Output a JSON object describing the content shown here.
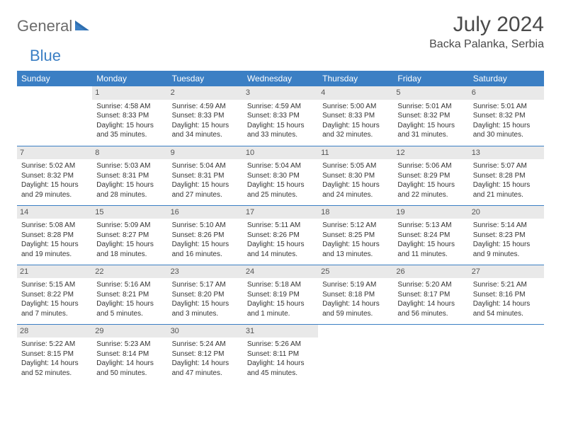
{
  "logo": {
    "word1": "General",
    "word2": "Blue"
  },
  "header": {
    "title": "July 2024",
    "location": "Backa Palanka, Serbia"
  },
  "colors": {
    "header_bg": "#3b7fc4",
    "header_text": "#ffffff",
    "daynum_bg": "#e9e9e9",
    "daynum_text": "#555555",
    "body_text": "#333333",
    "rule": "#3b7fc4",
    "logo_gray": "#6b6b6b",
    "logo_blue": "#3b7fc4"
  },
  "daysOfWeek": [
    "Sunday",
    "Monday",
    "Tuesday",
    "Wednesday",
    "Thursday",
    "Friday",
    "Saturday"
  ],
  "weeks": [
    [
      {
        "num": "",
        "sunrise": "",
        "sunset": "",
        "daylight": ""
      },
      {
        "num": "1",
        "sunrise": "Sunrise: 4:58 AM",
        "sunset": "Sunset: 8:33 PM",
        "daylight": "Daylight: 15 hours and 35 minutes."
      },
      {
        "num": "2",
        "sunrise": "Sunrise: 4:59 AM",
        "sunset": "Sunset: 8:33 PM",
        "daylight": "Daylight: 15 hours and 34 minutes."
      },
      {
        "num": "3",
        "sunrise": "Sunrise: 4:59 AM",
        "sunset": "Sunset: 8:33 PM",
        "daylight": "Daylight: 15 hours and 33 minutes."
      },
      {
        "num": "4",
        "sunrise": "Sunrise: 5:00 AM",
        "sunset": "Sunset: 8:33 PM",
        "daylight": "Daylight: 15 hours and 32 minutes."
      },
      {
        "num": "5",
        "sunrise": "Sunrise: 5:01 AM",
        "sunset": "Sunset: 8:32 PM",
        "daylight": "Daylight: 15 hours and 31 minutes."
      },
      {
        "num": "6",
        "sunrise": "Sunrise: 5:01 AM",
        "sunset": "Sunset: 8:32 PM",
        "daylight": "Daylight: 15 hours and 30 minutes."
      }
    ],
    [
      {
        "num": "7",
        "sunrise": "Sunrise: 5:02 AM",
        "sunset": "Sunset: 8:32 PM",
        "daylight": "Daylight: 15 hours and 29 minutes."
      },
      {
        "num": "8",
        "sunrise": "Sunrise: 5:03 AM",
        "sunset": "Sunset: 8:31 PM",
        "daylight": "Daylight: 15 hours and 28 minutes."
      },
      {
        "num": "9",
        "sunrise": "Sunrise: 5:04 AM",
        "sunset": "Sunset: 8:31 PM",
        "daylight": "Daylight: 15 hours and 27 minutes."
      },
      {
        "num": "10",
        "sunrise": "Sunrise: 5:04 AM",
        "sunset": "Sunset: 8:30 PM",
        "daylight": "Daylight: 15 hours and 25 minutes."
      },
      {
        "num": "11",
        "sunrise": "Sunrise: 5:05 AM",
        "sunset": "Sunset: 8:30 PM",
        "daylight": "Daylight: 15 hours and 24 minutes."
      },
      {
        "num": "12",
        "sunrise": "Sunrise: 5:06 AM",
        "sunset": "Sunset: 8:29 PM",
        "daylight": "Daylight: 15 hours and 22 minutes."
      },
      {
        "num": "13",
        "sunrise": "Sunrise: 5:07 AM",
        "sunset": "Sunset: 8:28 PM",
        "daylight": "Daylight: 15 hours and 21 minutes."
      }
    ],
    [
      {
        "num": "14",
        "sunrise": "Sunrise: 5:08 AM",
        "sunset": "Sunset: 8:28 PM",
        "daylight": "Daylight: 15 hours and 19 minutes."
      },
      {
        "num": "15",
        "sunrise": "Sunrise: 5:09 AM",
        "sunset": "Sunset: 8:27 PM",
        "daylight": "Daylight: 15 hours and 18 minutes."
      },
      {
        "num": "16",
        "sunrise": "Sunrise: 5:10 AM",
        "sunset": "Sunset: 8:26 PM",
        "daylight": "Daylight: 15 hours and 16 minutes."
      },
      {
        "num": "17",
        "sunrise": "Sunrise: 5:11 AM",
        "sunset": "Sunset: 8:26 PM",
        "daylight": "Daylight: 15 hours and 14 minutes."
      },
      {
        "num": "18",
        "sunrise": "Sunrise: 5:12 AM",
        "sunset": "Sunset: 8:25 PM",
        "daylight": "Daylight: 15 hours and 13 minutes."
      },
      {
        "num": "19",
        "sunrise": "Sunrise: 5:13 AM",
        "sunset": "Sunset: 8:24 PM",
        "daylight": "Daylight: 15 hours and 11 minutes."
      },
      {
        "num": "20",
        "sunrise": "Sunrise: 5:14 AM",
        "sunset": "Sunset: 8:23 PM",
        "daylight": "Daylight: 15 hours and 9 minutes."
      }
    ],
    [
      {
        "num": "21",
        "sunrise": "Sunrise: 5:15 AM",
        "sunset": "Sunset: 8:22 PM",
        "daylight": "Daylight: 15 hours and 7 minutes."
      },
      {
        "num": "22",
        "sunrise": "Sunrise: 5:16 AM",
        "sunset": "Sunset: 8:21 PM",
        "daylight": "Daylight: 15 hours and 5 minutes."
      },
      {
        "num": "23",
        "sunrise": "Sunrise: 5:17 AM",
        "sunset": "Sunset: 8:20 PM",
        "daylight": "Daylight: 15 hours and 3 minutes."
      },
      {
        "num": "24",
        "sunrise": "Sunrise: 5:18 AM",
        "sunset": "Sunset: 8:19 PM",
        "daylight": "Daylight: 15 hours and 1 minute."
      },
      {
        "num": "25",
        "sunrise": "Sunrise: 5:19 AM",
        "sunset": "Sunset: 8:18 PM",
        "daylight": "Daylight: 14 hours and 59 minutes."
      },
      {
        "num": "26",
        "sunrise": "Sunrise: 5:20 AM",
        "sunset": "Sunset: 8:17 PM",
        "daylight": "Daylight: 14 hours and 56 minutes."
      },
      {
        "num": "27",
        "sunrise": "Sunrise: 5:21 AM",
        "sunset": "Sunset: 8:16 PM",
        "daylight": "Daylight: 14 hours and 54 minutes."
      }
    ],
    [
      {
        "num": "28",
        "sunrise": "Sunrise: 5:22 AM",
        "sunset": "Sunset: 8:15 PM",
        "daylight": "Daylight: 14 hours and 52 minutes."
      },
      {
        "num": "29",
        "sunrise": "Sunrise: 5:23 AM",
        "sunset": "Sunset: 8:14 PM",
        "daylight": "Daylight: 14 hours and 50 minutes."
      },
      {
        "num": "30",
        "sunrise": "Sunrise: 5:24 AM",
        "sunset": "Sunset: 8:12 PM",
        "daylight": "Daylight: 14 hours and 47 minutes."
      },
      {
        "num": "31",
        "sunrise": "Sunrise: 5:26 AM",
        "sunset": "Sunset: 8:11 PM",
        "daylight": "Daylight: 14 hours and 45 minutes."
      },
      {
        "num": "",
        "sunrise": "",
        "sunset": "",
        "daylight": ""
      },
      {
        "num": "",
        "sunrise": "",
        "sunset": "",
        "daylight": ""
      },
      {
        "num": "",
        "sunrise": "",
        "sunset": "",
        "daylight": ""
      }
    ]
  ]
}
